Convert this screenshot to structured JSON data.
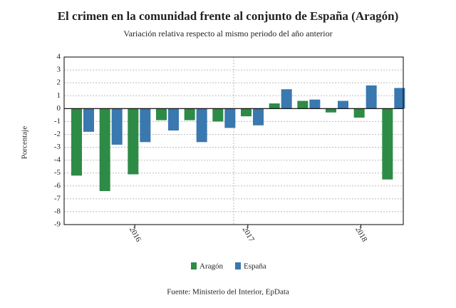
{
  "chart_data": {
    "type": "bar",
    "title": "El crimen en la comunidad frente al conjunto de España (Aragón)",
    "subtitle": "Variación relativa respecto al mismo periodo del año anterior",
    "y_label": "Porcentaje",
    "source": "Fuente: Ministerio del Interior, EpData",
    "categories": [
      null,
      null,
      "2016",
      null,
      null,
      null,
      "2017",
      null,
      null,
      null,
      "2018",
      null
    ],
    "series": [
      {
        "name": "Aragón",
        "color": "#2e8b45",
        "values": [
          -5.2,
          -6.4,
          -5.1,
          -0.9,
          -0.9,
          -1.0,
          -0.6,
          0.4,
          0.6,
          -0.3,
          -0.7,
          -5.5
        ]
      },
      {
        "name": "España",
        "color": "#3a78b0",
        "values": [
          -1.8,
          -2.8,
          -2.6,
          -1.7,
          -2.6,
          -1.5,
          -1.3,
          1.5,
          0.7,
          0.6,
          1.8,
          1.6
        ]
      }
    ],
    "ylim": [
      -9,
      4
    ],
    "yticks": [
      -9,
      -8,
      -7,
      -6,
      -5,
      -4,
      -3,
      -2,
      -1,
      0,
      1,
      2,
      3,
      4
    ],
    "grid": true
  }
}
